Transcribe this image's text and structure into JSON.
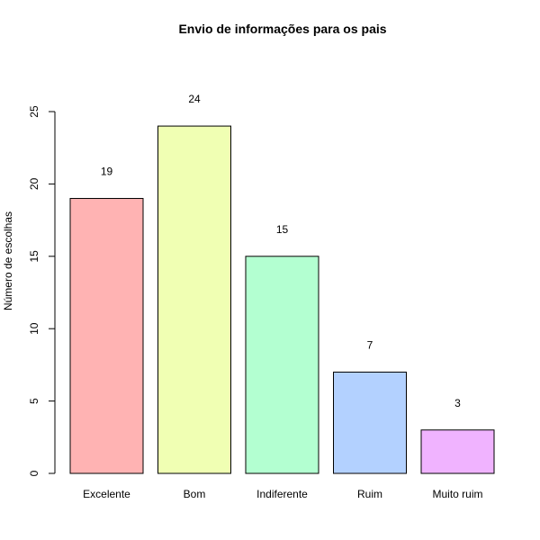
{
  "chart_data": {
    "type": "bar",
    "title": "Envio de informações para os pais",
    "xlabel": "",
    "ylabel": "Número de escolhas",
    "categories": [
      "Excelente",
      "Bom",
      "Indiferente",
      "Ruim",
      "Muito ruim"
    ],
    "values": [
      19,
      24,
      15,
      7,
      3
    ],
    "colors": [
      "#FFB3B3",
      "#F0FFB3",
      "#B3FFD1",
      "#B3D1FF",
      "#F0B3FF"
    ],
    "ylim": [
      0,
      25
    ],
    "yticks": [
      0,
      5,
      10,
      15,
      20,
      25
    ],
    "value_labels": [
      "19",
      "24",
      "15",
      "7",
      "3"
    ],
    "grid": false,
    "legend": "none"
  }
}
